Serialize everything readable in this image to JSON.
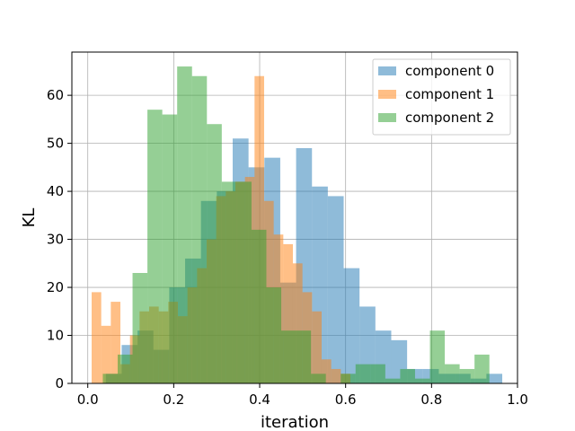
{
  "chart_data": {
    "type": "bar",
    "subtype": "overlapping-histogram",
    "title": "",
    "xlabel": "iteration",
    "ylabel": "KL",
    "xlim": [
      -0.037,
      1.0
    ],
    "ylim": [
      0,
      69
    ],
    "xticks": [
      "0.0",
      "0.2",
      "0.4",
      "0.6",
      "0.8",
      "1.0"
    ],
    "xtick_values": [
      0.0,
      0.2,
      0.4,
      0.6,
      0.8,
      1.0
    ],
    "yticks": [
      "0",
      "10",
      "20",
      "30",
      "40",
      "50",
      "60"
    ],
    "ytick_values": [
      0,
      10,
      20,
      30,
      40,
      50,
      60
    ],
    "grid": true,
    "legend_position": "top-right",
    "series": [
      {
        "name": "component 0",
        "color": "#1f77b4",
        "alpha": 0.5,
        "bin_start": 0.042,
        "bin_width": 0.0369,
        "values": [
          2,
          8,
          11,
          7,
          20,
          26,
          38,
          40,
          51,
          45,
          47,
          21,
          49,
          41,
          39,
          24,
          16,
          11,
          9,
          3,
          3,
          2,
          2,
          1,
          2
        ]
      },
      {
        "name": "component 1",
        "color": "#ff7f0e",
        "alpha": 0.5,
        "bin_start": 0.009,
        "bin_width": 0.0223,
        "values": [
          19,
          12,
          17,
          4,
          10,
          15,
          16,
          15,
          17,
          14,
          20,
          24,
          30,
          39,
          40,
          42,
          43,
          64,
          38,
          31,
          29,
          25,
          19,
          15,
          5,
          3,
          2
        ]
      },
      {
        "name": "component 2",
        "color": "#2ca02c",
        "alpha": 0.5,
        "bin_start": 0.035,
        "bin_width": 0.0346,
        "values": [
          2,
          6,
          23,
          57,
          56,
          66,
          64,
          54,
          42,
          42,
          32,
          20,
          11,
          11,
          2,
          0,
          2,
          4,
          4,
          1,
          3,
          1,
          11,
          4,
          3,
          6
        ]
      }
    ]
  }
}
